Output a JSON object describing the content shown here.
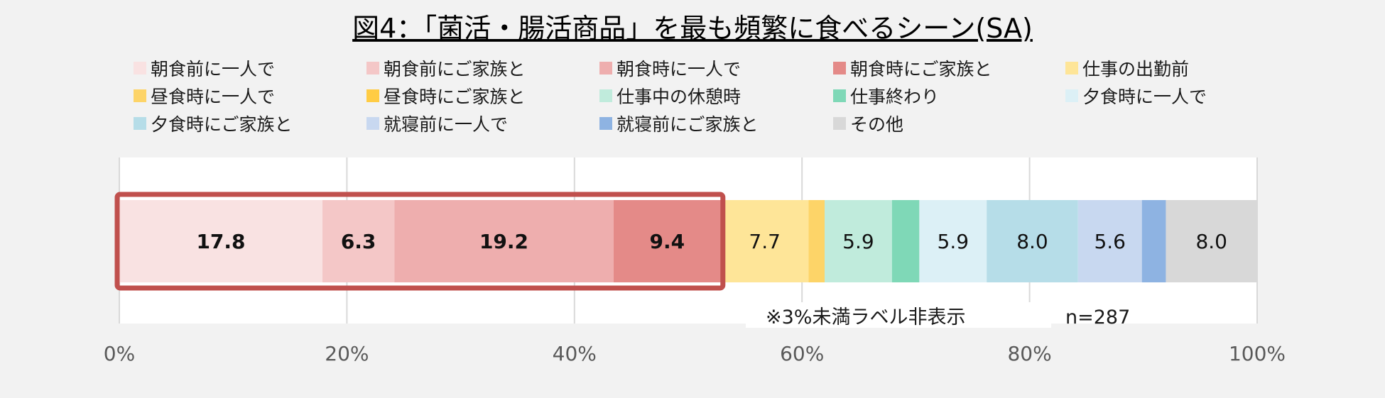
{
  "chart_data": {
    "type": "bar",
    "orientation": "horizontal-stacked-100",
    "title": "図4：「菌活・腸活商品」を最も頻繁に食べるシーン(SA)",
    "xlim": [
      0,
      100
    ],
    "x_ticks": [
      "0%",
      "20%",
      "40%",
      "60%",
      "80%",
      "100%"
    ],
    "x_tick_values": [
      0,
      20,
      40,
      60,
      80,
      100
    ],
    "grid": true,
    "legend_position": "top",
    "n_label": "n=287",
    "note": "※3%未満ラベル非表示",
    "highlight": {
      "from_series": 0,
      "to_series": 3,
      "color": "#c0504d"
    },
    "series": [
      {
        "name": "朝食前に一人で",
        "value": 17.8,
        "label": "17.8",
        "color": "#f9e2e2",
        "bold": true
      },
      {
        "name": "朝食前にご家族と",
        "value": 6.3,
        "label": "6.3",
        "color": "#f4c7c7",
        "bold": true
      },
      {
        "name": "朝食時に一人で",
        "value": 19.2,
        "label": "19.2",
        "color": "#eeaeae",
        "bold": true
      },
      {
        "name": "朝食時にご家族と",
        "value": 9.4,
        "label": "9.4",
        "color": "#e48a88",
        "bold": true
      },
      {
        "name": "仕事の出勤前",
        "value": 7.7,
        "label": "7.7",
        "color": "#fee598",
        "bold": false
      },
      {
        "name": "昼食時に一人で",
        "value": 1.4,
        "label": "",
        "color": "#fdd468",
        "bold": false
      },
      {
        "name": "昼食時にご家族と",
        "value": 0.0,
        "label": "",
        "color": "#ffcc44",
        "bold": false
      },
      {
        "name": "仕事中の休憩時",
        "value": 5.9,
        "label": "5.9",
        "color": "#c0ebdc",
        "bold": false
      },
      {
        "name": "仕事終わり",
        "value": 2.4,
        "label": "",
        "color": "#7fd8b7",
        "bold": false
      },
      {
        "name": "夕食時に一人で",
        "value": 5.9,
        "label": "5.9",
        "color": "#dcf0f6",
        "bold": false
      },
      {
        "name": "夕食時にご家族と",
        "value": 8.0,
        "label": "8.0",
        "color": "#b6dde8",
        "bold": false
      },
      {
        "name": "就寝前に一人で",
        "value": 5.6,
        "label": "5.6",
        "color": "#c8d8f0",
        "bold": false
      },
      {
        "name": "就寝前にご家族と",
        "value": 2.1,
        "label": "",
        "color": "#8eb3e2",
        "bold": false
      },
      {
        "name": "その他",
        "value": 8.0,
        "label": "8.0",
        "color": "#d8d8d8",
        "bold": false
      }
    ]
  }
}
